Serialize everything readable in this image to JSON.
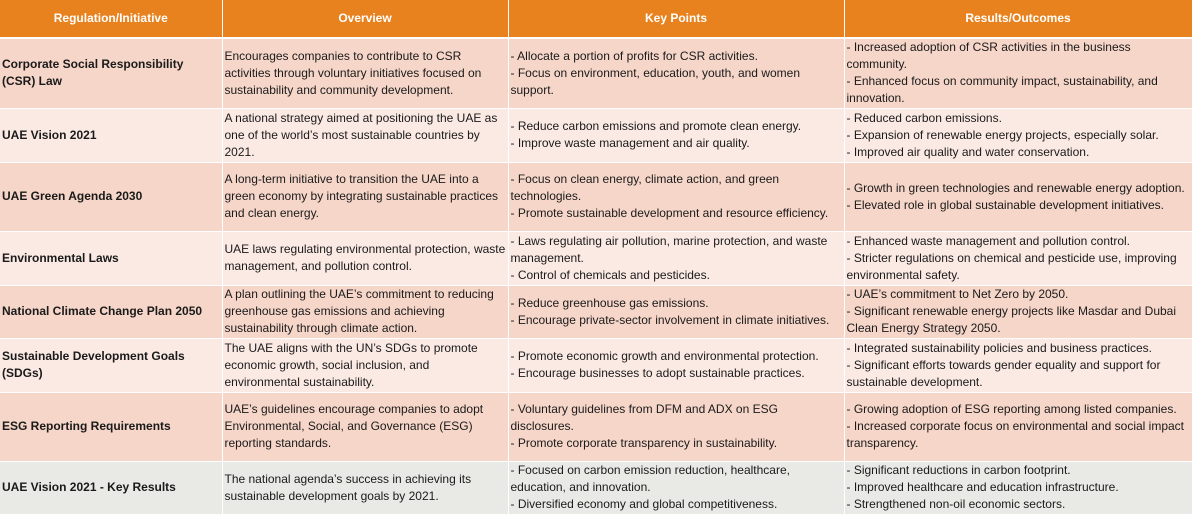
{
  "headers": [
    "Regulation/Initiative",
    "Overview",
    "Key Points",
    "Results/Outcomes"
  ],
  "rows": [
    {
      "name": "Corporate Social Responsibility (CSR) Law",
      "overview": "Encourages companies to contribute to CSR activities through voluntary initiatives focused on sustainability and community development.",
      "key_points": [
        "- Allocate a portion of profits for CSR activities.",
        "- Focus on environment, education, youth, and women support."
      ],
      "results": [
        "- Increased adoption of CSR activities in the business community.",
        "- Enhanced focus on community impact, sustainability, and innovation."
      ]
    },
    {
      "name": "UAE Vision 2021",
      "overview": "A national strategy aimed at positioning the UAE as one of the world’s most sustainable countries by 2021.",
      "key_points": [
        "- Reduce carbon emissions and promote clean energy.",
        "- Improve waste management and air quality."
      ],
      "results": [
        "- Reduced carbon emissions.",
        "- Expansion of renewable energy projects, especially solar.",
        "- Improved air quality and water conservation."
      ]
    },
    {
      "name": "UAE Green Agenda 2030",
      "overview": "A long-term initiative to transition the UAE into a green economy by integrating sustainable practices and clean energy.",
      "key_points": [
        "- Focus on clean energy, climate action, and green technologies.",
        "- Promote sustainable development and resource efficiency."
      ],
      "results": [
        "- Growth in green technologies and renewable energy adoption.",
        "- Elevated role in global sustainable development initiatives."
      ]
    },
    {
      "name": "Environmental Laws",
      "overview": "UAE laws regulating environmental protection, waste management, and pollution control.",
      "key_points": [
        "- Laws regulating air pollution, marine protection, and waste management.",
        "- Control of chemicals and pesticides."
      ],
      "results": [
        "- Enhanced waste management and pollution control.",
        "- Stricter regulations on chemical and pesticide use, improving environmental safety."
      ]
    },
    {
      "name": "National Climate Change Plan 2050",
      "overview": "A plan outlining the UAE’s commitment to reducing greenhouse gas emissions and achieving sustainability through climate action.",
      "key_points": [
        "- Reduce greenhouse gas emissions.",
        "- Encourage private-sector involvement in climate initiatives."
      ],
      "results": [
        "- UAE’s commitment to Net Zero by 2050.",
        "- Significant renewable energy projects like Masdar and Dubai Clean Energy Strategy 2050."
      ]
    },
    {
      "name": "Sustainable Development Goals (SDGs)",
      "overview": "The UAE aligns with the UN’s SDGs to promote economic growth, social inclusion, and environmental sustainability.",
      "key_points": [
        "- Promote economic growth and environmental protection.",
        "- Encourage businesses to adopt sustainable practices."
      ],
      "results": [
        "- Integrated sustainability policies and business practices.",
        "- Significant efforts towards gender equality and support for sustainable development."
      ]
    },
    {
      "name": "ESG Reporting Requirements",
      "overview": "UAE’s guidelines encourage companies to adopt Environmental, Social, and Governance (ESG) reporting standards.",
      "key_points": [
        "- Voluntary guidelines from DFM and ADX on ESG disclosures.",
        "- Promote corporate transparency in sustainability."
      ],
      "results": [
        "- Growing adoption of ESG reporting among listed companies.",
        "- Increased corporate focus on environmental and social impact transparency."
      ]
    },
    {
      "name": "UAE Vision 2021 - Key Results",
      "overview": "The national agenda’s success in achieving its sustainable development goals by 2021.",
      "key_points": [
        "- Focused on carbon emission reduction, healthcare, education, and innovation.",
        "- Diversified economy and global competitiveness."
      ],
      "results": [
        "- Significant reductions in carbon footprint.",
        "- Improved healthcare and education infrastructure.",
        "- Strengthened non-oil economic sectors."
      ]
    }
  ]
}
